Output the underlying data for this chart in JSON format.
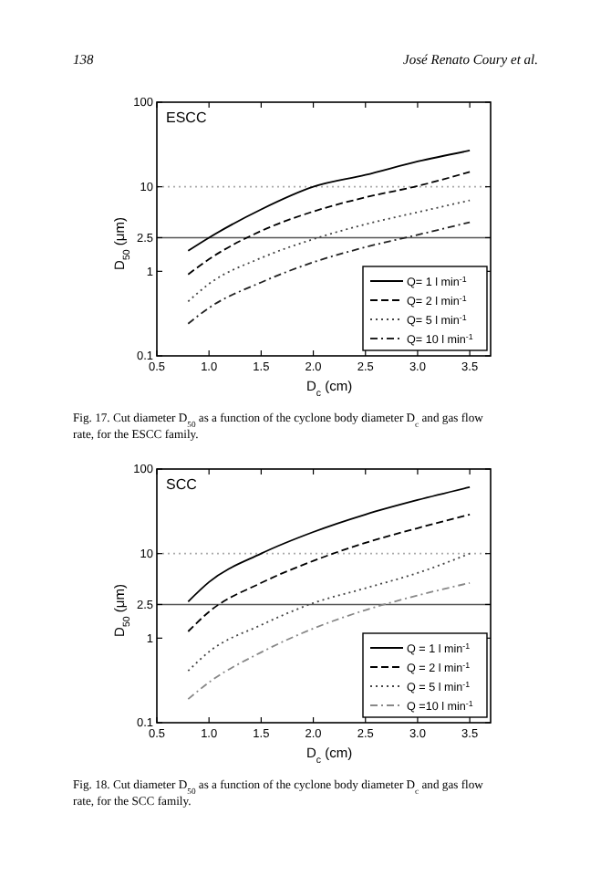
{
  "chart_data": [
    {
      "type": "line",
      "title": "ESCC",
      "xlabel": "D$_{c}$ (cm)",
      "ylabel": "D$_{50}$ (μm)",
      "log": "y",
      "xlim": [
        0.5,
        3.7
      ],
      "ylim": [
        0.1,
        100
      ],
      "xticks": [
        {
          "value": 0.5,
          "label": "0.5"
        },
        {
          "value": 1,
          "label": "1.0"
        },
        {
          "value": 1.5,
          "label": "1.5"
        },
        {
          "value": 2,
          "label": "2.0"
        },
        {
          "value": 2.5,
          "label": "2.5"
        },
        {
          "value": 3,
          "label": "3.0"
        },
        {
          "value": 3.5,
          "label": "3.5"
        }
      ],
      "yticks": [
        0.1,
        1,
        2.5,
        10,
        100
      ],
      "grid": false,
      "legend": "bottom right",
      "x": [
        0.8,
        1,
        1.5,
        2,
        2.5,
        3,
        3.5
      ],
      "series": [
        {
          "name": "Q= 1 l min$^{-1}$",
          "color": "#000000",
          "line_style": "solid",
          "values": [
            1.75,
            2.5,
            5.4,
            10,
            13.8,
            19.9,
            26.8
          ]
        },
        {
          "name": "Q= 2 l min$^{-1}$",
          "color": "#000000",
          "line_style": "dashed",
          "values": [
            0.92,
            1.39,
            3,
            5.1,
            7.5,
            10.2,
            15
          ]
        },
        {
          "name": "Q= 5 l min$^{-1}$",
          "color": "#444444",
          "line_style": "dotted",
          "values": [
            0.44,
            0.71,
            1.44,
            2.4,
            3.6,
            5,
            6.9
          ]
        },
        {
          "name": "Q= 10 l min$^{-1}$",
          "color": "#222222",
          "line_style": "dashdot",
          "values": [
            0.24,
            0.37,
            0.74,
            1.28,
            1.93,
            2.7,
            3.8
          ]
        }
      ],
      "ref_lines": [
        {
          "axis": "y",
          "value": 10,
          "color": "#aaaaaa",
          "line_style": "dotted"
        },
        {
          "axis": "y",
          "value": 2.5,
          "color": "#555555",
          "line_style": "solid"
        }
      ],
      "annotations": [
        "138",
        "José Renato Coury et al.",
        "Fig. 17. Cut diameter D$_{50}$ as a function of the cyclone body diameter D$_{c}$ and gas flow rate, for the ESCC family."
      ]
    },
    {
      "type": "line",
      "title": "SCC",
      "xlabel": "D$_{c}$ (cm)",
      "ylabel": "D$_{50}$ (μm)",
      "log": "y",
      "xlim": [
        0.5,
        3.7
      ],
      "ylim": [
        0.1,
        100
      ],
      "xticks": [
        {
          "value": 0.5,
          "label": "0.5"
        },
        {
          "value": 1,
          "label": "1.0"
        },
        {
          "value": 1.5,
          "label": "1.5"
        },
        {
          "value": 2,
          "label": "2.0"
        },
        {
          "value": 2.5,
          "label": "2.5"
        },
        {
          "value": 3,
          "label": "3.0"
        },
        {
          "value": 3.5,
          "label": "3.5"
        }
      ],
      "yticks": [
        0.1,
        1,
        2.5,
        10,
        100
      ],
      "grid": false,
      "legend": "bottom right",
      "x": [
        0.8,
        1,
        1.5,
        2,
        2.5,
        3,
        3.5
      ],
      "series": [
        {
          "name": "Q = 1 l min$^{-1}$",
          "color": "#000000",
          "line_style": "solid",
          "values": [
            2.7,
            4.6,
            10,
            18,
            29,
            43,
            61
          ]
        },
        {
          "name": "Q = 2 l min$^{-1}$",
          "color": "#000000",
          "line_style": "dashed",
          "values": [
            1.2,
            2.05,
            4.5,
            8.2,
            13.4,
            20,
            29
          ]
        },
        {
          "name": "Q = 5 l min$^{-1}$",
          "color": "#444444",
          "line_style": "dotted",
          "values": [
            0.41,
            0.69,
            1.43,
            2.6,
            3.9,
            5.9,
            10
          ]
        },
        {
          "name": "Q =10 l min$^{-1}$",
          "color": "#888888",
          "line_style": "dashdot",
          "values": [
            0.19,
            0.3,
            0.68,
            1.3,
            2.15,
            3.2,
            4.5
          ]
        }
      ],
      "ref_lines": [
        {
          "axis": "y",
          "value": 10,
          "color": "#aaaaaa",
          "line_style": "dotted"
        },
        {
          "axis": "y",
          "value": 2.5,
          "color": "#555555",
          "line_style": "solid"
        }
      ],
      "annotations": [
        "Fig. 18. Cut diameter D$_{50}$ as a function of the cyclone body diameter D$_{c}$ and gas flow rate, for the SCC family."
      ]
    }
  ]
}
